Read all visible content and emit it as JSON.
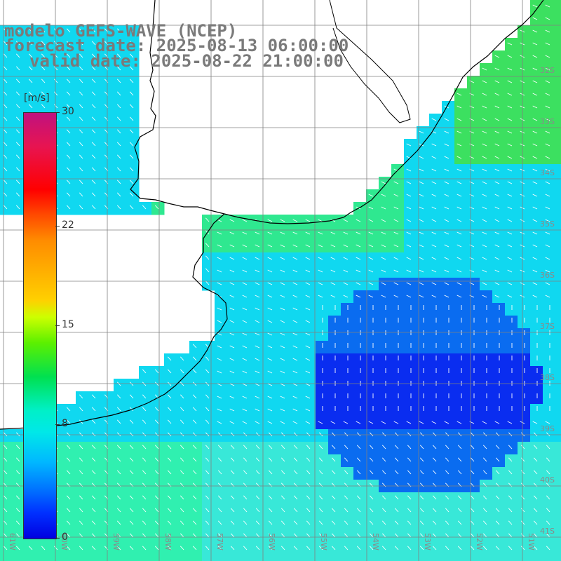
{
  "header": {
    "line1": "modelo GEFS-WAVE (NCEP)",
    "line2": "forecast date: 2025-08-13 06:00:00",
    "line3": "valid date: 2025-08-22 21:00:00"
  },
  "colorbar": {
    "unit": "[m/s]",
    "labels": [
      "30",
      "22",
      "15",
      "8",
      "0"
    ],
    "label_values": [
      30,
      22,
      15,
      8,
      0
    ],
    "min": 0,
    "max": 30
  },
  "map": {
    "lat_labels": [
      "32S",
      "33S",
      "34S",
      "35S",
      "36S",
      "37S",
      "38S",
      "39S",
      "40S",
      "41S"
    ],
    "lon_labels": [
      "61W",
      "60W",
      "59W",
      "58W",
      "57W",
      "56W",
      "55W",
      "54W",
      "53W",
      "52W",
      "51W"
    ],
    "grid_color": "#808080",
    "coast_color": "#000000",
    "arrow_color": "#ffffff"
  }
}
